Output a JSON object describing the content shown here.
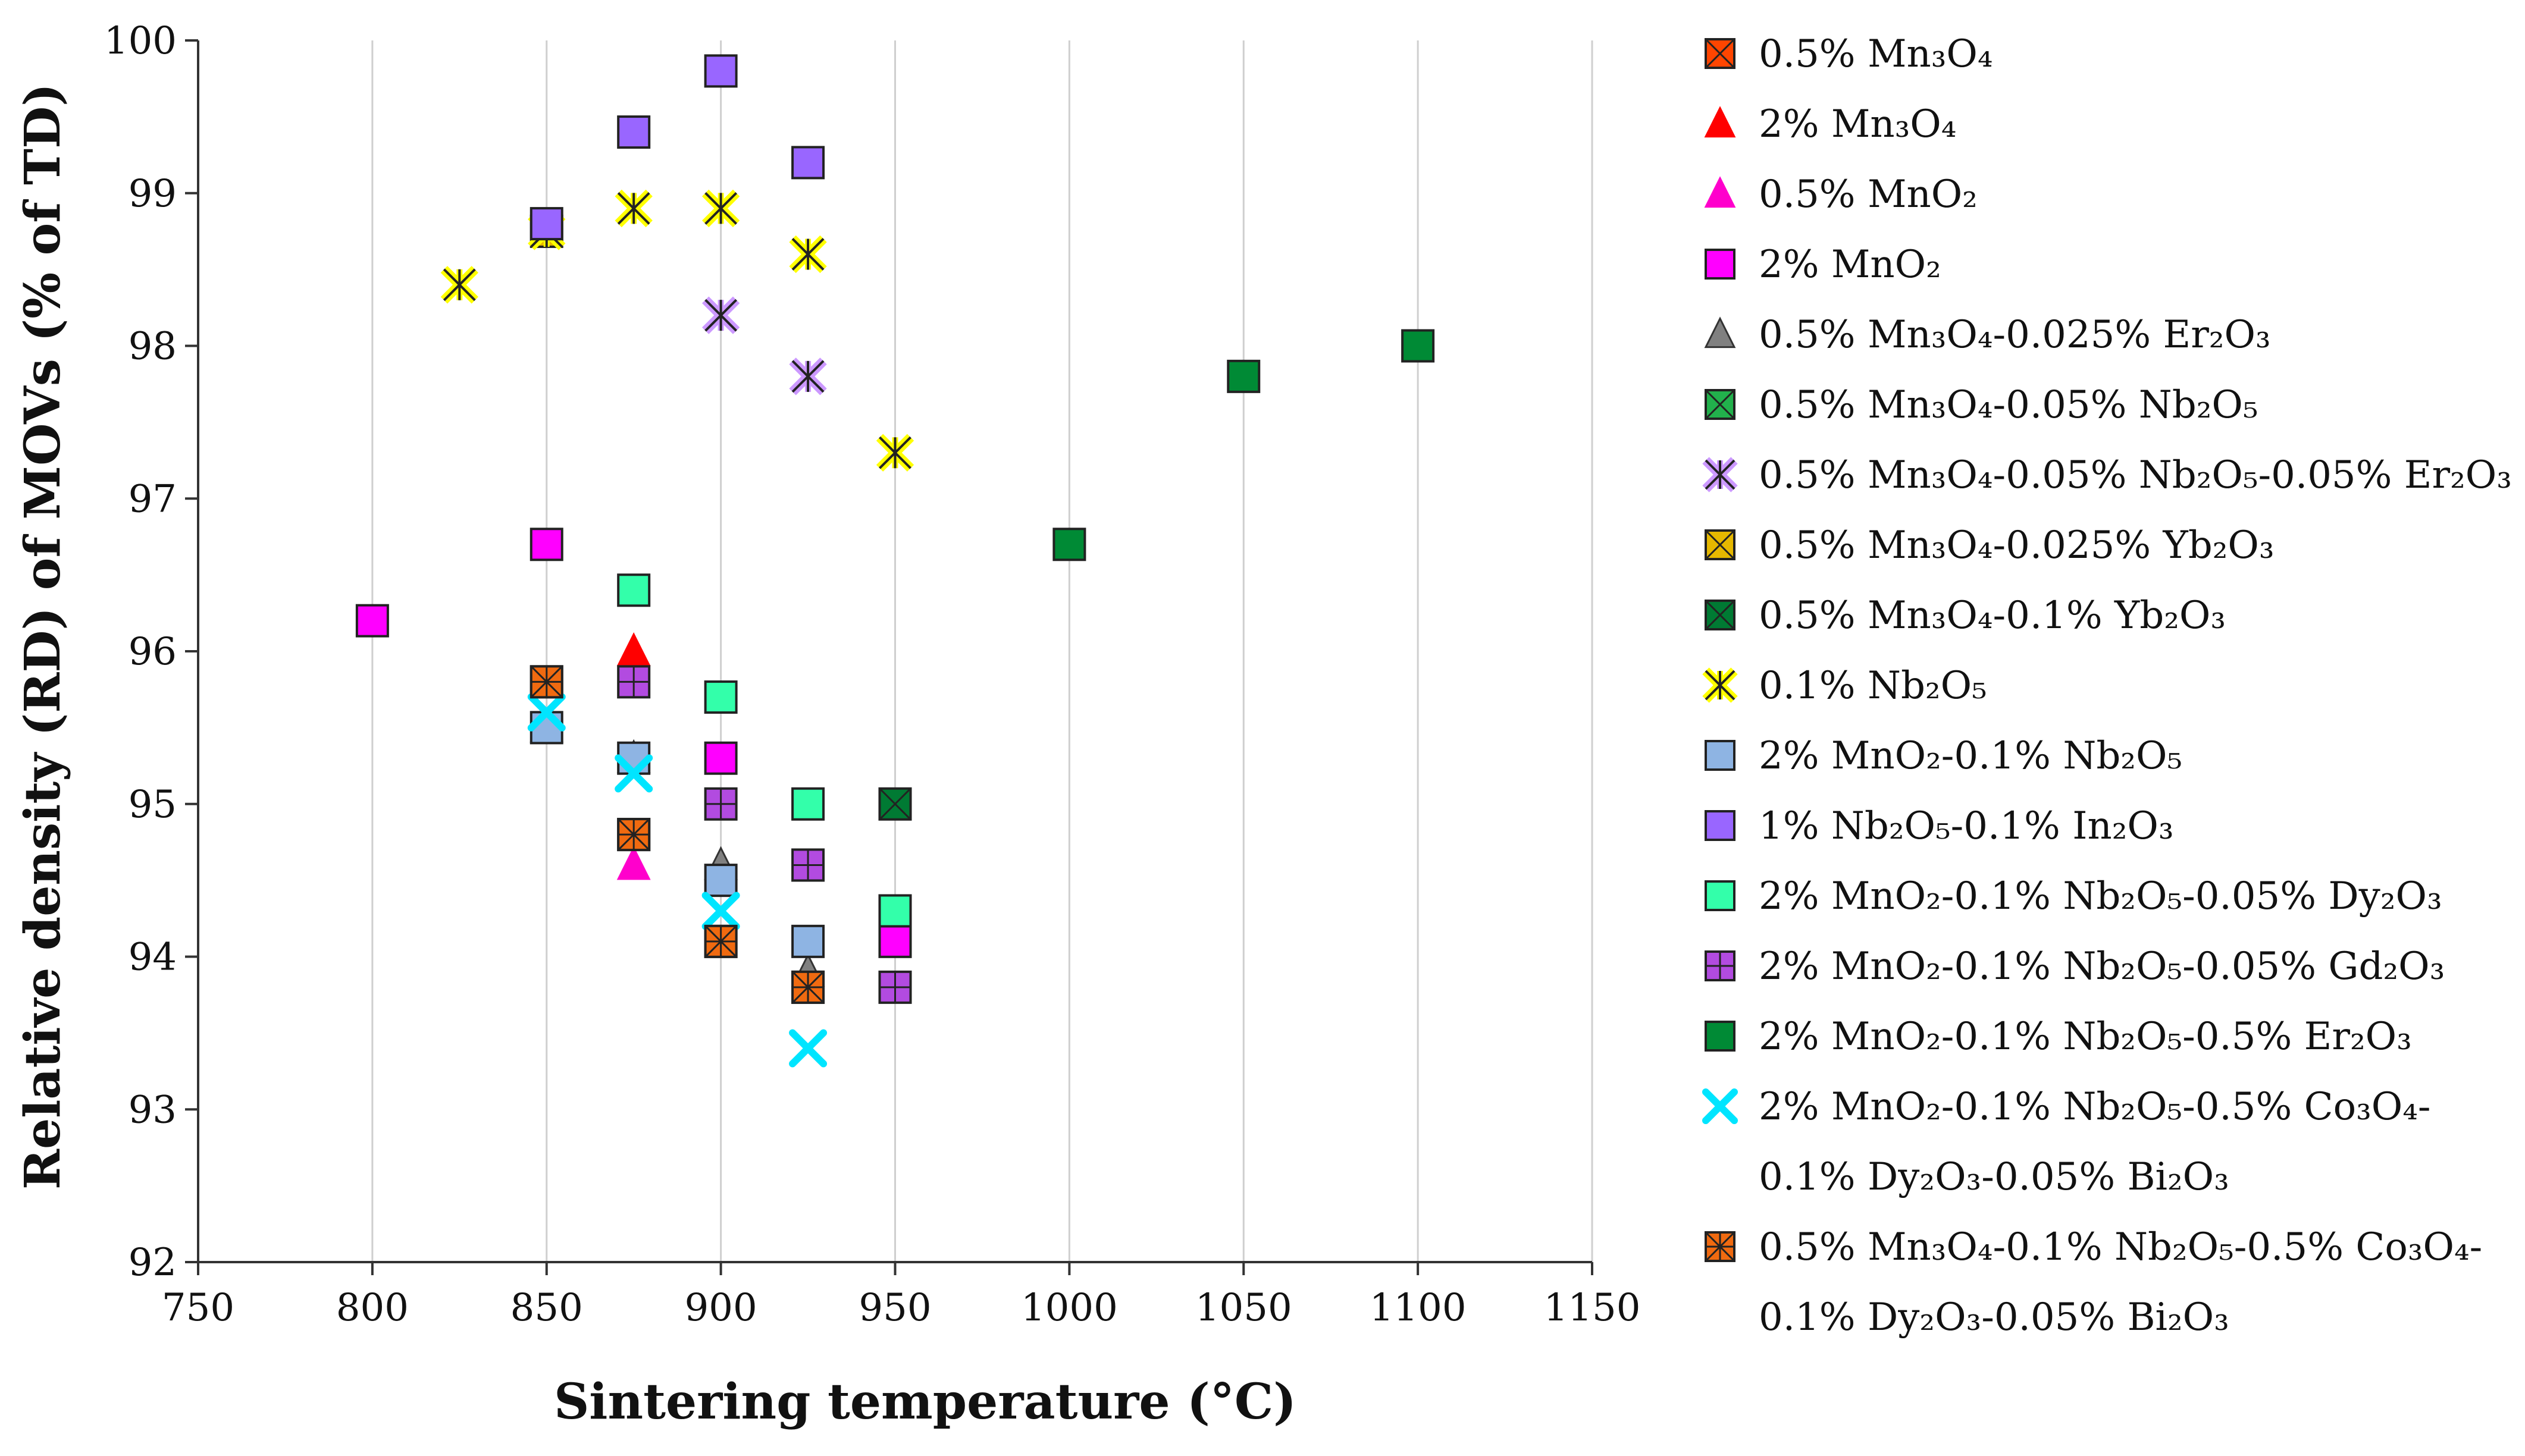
{
  "chart_data": {
    "type": "scatter",
    "xlabel": "Sintering temperature (°C)",
    "ylabel": "Relative density (RD) of MOVs (% of TD)",
    "xlim": [
      750,
      1150
    ],
    "ylim": [
      92,
      100
    ],
    "xticks": [
      750,
      800,
      850,
      900,
      950,
      1000,
      1050,
      1100,
      1150
    ],
    "yticks": [
      92,
      93,
      94,
      95,
      96,
      97,
      98,
      99,
      100
    ],
    "grid": "vertical",
    "legend_position": "right",
    "series": [
      {
        "name": "0.5% Mn3O4",
        "marker": "square-x",
        "color": "#FF4500",
        "points": [
          [
            850,
            95.8
          ],
          [
            875,
            94.8
          ],
          [
            900,
            94.1
          ],
          [
            925,
            93.8
          ]
        ]
      },
      {
        "name": "2% Mn3O4",
        "marker": "triangle",
        "color": "#FF0000",
        "points": [
          [
            875,
            96.0
          ]
        ]
      },
      {
        "name": "0.5% MnO2",
        "marker": "triangle",
        "color": "#FF00CC",
        "points": [
          [
            875,
            94.6
          ]
        ]
      },
      {
        "name": "2% MnO2",
        "marker": "square",
        "color": "#FF00FF",
        "points": [
          [
            800,
            96.2
          ],
          [
            850,
            96.7
          ],
          [
            900,
            95.3
          ],
          [
            950,
            94.1
          ]
        ]
      },
      {
        "name": "0.5% Mn3O4-0.025% Er2O3",
        "marker": "triangle",
        "color": "#808080",
        "points": [
          [
            850,
            95.5
          ],
          [
            875,
            95.3
          ],
          [
            900,
            94.6
          ],
          [
            925,
            93.9
          ]
        ]
      },
      {
        "name": "0.5% Mn3O4-0.05% Nb2O5",
        "marker": "square-x",
        "color": "#22B14C",
        "points": []
      },
      {
        "name": "0.5% Mn3O4-0.05% Nb2O5-0.05% Er2O3",
        "marker": "asterisk",
        "color": "#CC99FF",
        "points": [
          [
            900,
            98.2
          ],
          [
            925,
            97.8
          ]
        ]
      },
      {
        "name": "0.5% Mn3O4-0.025% Yb2O3",
        "marker": "square-x",
        "color": "#E6B800",
        "points": [
          [
            850,
            98.75
          ]
        ]
      },
      {
        "name": "0.5% Mn3O4-0.1% Yb2O3",
        "marker": "square-x",
        "color": "#007A33",
        "points": [
          [
            950,
            95.0
          ]
        ]
      },
      {
        "name": "0.1% Nb2O5",
        "marker": "asterisk",
        "color": "#FFFF00",
        "points": [
          [
            825,
            98.4
          ],
          [
            850,
            98.75
          ],
          [
            875,
            98.9
          ],
          [
            900,
            98.9
          ],
          [
            925,
            98.6
          ],
          [
            950,
            97.3
          ]
        ]
      },
      {
        "name": "2% MnO2-0.1% Nb2O5",
        "marker": "square",
        "color": "#8EB4E3",
        "points": [
          [
            850,
            95.5
          ],
          [
            875,
            95.3
          ],
          [
            900,
            94.5
          ],
          [
            925,
            94.1
          ]
        ]
      },
      {
        "name": "1% Nb2O5-0.1% In2O3",
        "marker": "square",
        "color": "#9966FF",
        "points": [
          [
            850,
            98.8
          ],
          [
            875,
            99.4
          ],
          [
            900,
            99.8
          ],
          [
            925,
            99.2
          ]
        ]
      },
      {
        "name": "2% MnO2-0.1% Nb2O5-0.05% Dy2O3",
        "marker": "square",
        "color": "#33FFAA",
        "points": [
          [
            875,
            96.4
          ],
          [
            900,
            95.7
          ],
          [
            925,
            95.0
          ],
          [
            950,
            94.3
          ]
        ]
      },
      {
        "name": "2% MnO2-0.1% Nb2O5-0.05% Gd2O3",
        "marker": "square-plus",
        "color": "#B24BE0",
        "points": [
          [
            875,
            95.8
          ],
          [
            900,
            95.0
          ],
          [
            925,
            94.6
          ],
          [
            950,
            93.8
          ]
        ]
      },
      {
        "name": "2% MnO2-0.1% Nb2O5-0.5% Er2O3",
        "marker": "square",
        "color": "#008A35",
        "points": [
          [
            1000,
            96.7
          ],
          [
            1050,
            97.8
          ],
          [
            1100,
            98.0
          ]
        ]
      },
      {
        "name": "2% MnO2-0.1% Nb2O5-0.5% Co3O4-0.1% Dy2O3-0.05% Bi2O3",
        "marker": "x",
        "color": "#00E5FF",
        "points": [
          [
            850,
            95.6
          ],
          [
            875,
            95.2
          ],
          [
            900,
            94.3
          ],
          [
            925,
            93.4
          ]
        ]
      },
      {
        "name": "0.5% Mn3O4-0.1% Nb2O5-0.5% Co3O4-0.1% Dy2O3-0.05% Bi2O3",
        "marker": "square-asterisk",
        "color": "#F06A10",
        "points": [
          [
            850,
            95.8
          ],
          [
            875,
            94.8
          ],
          [
            900,
            94.1
          ],
          [
            925,
            93.8
          ]
        ]
      }
    ]
  },
  "legend_lines": [
    [
      "0.5% Mn₃O₄"
    ],
    [
      "2% Mn₃O₄"
    ],
    [
      "0.5% MnO₂"
    ],
    [
      "2% MnO₂"
    ],
    [
      "0.5% Mn₃O₄-0.025% Er₂O₃"
    ],
    [
      "0.5% Mn₃O₄-0.05% Nb₂O₅"
    ],
    [
      "0.5% Mn₃O₄-0.05% Nb₂O₅-0.05% Er₂O₃"
    ],
    [
      "0.5% Mn₃O₄-0.025% Yb₂O₃"
    ],
    [
      "0.5% Mn₃O₄-0.1% Yb₂O₃"
    ],
    [
      "0.1% Nb₂O₅"
    ],
    [
      "2% MnO₂-0.1% Nb₂O₅"
    ],
    [
      "1% Nb₂O₅-0.1% In₂O₃"
    ],
    [
      "2% MnO₂-0.1% Nb₂O₅-0.05% Dy₂O₃"
    ],
    [
      "2% MnO₂-0.1% Nb₂O₅-0.05% Gd₂O₃"
    ],
    [
      "2% MnO₂-0.1% Nb₂O₅-0.5% Er₂O₃"
    ],
    [
      "2% MnO₂-0.1% Nb₂O₅-0.5% Co₃O₄-",
      "0.1% Dy₂O₃-0.05% Bi₂O₃"
    ],
    [
      "0.5% Mn₃O₄-0.1% Nb₂O₅-0.5% Co₃O₄-",
      "0.1% Dy₂O₃-0.05% Bi₂O₃"
    ]
  ]
}
